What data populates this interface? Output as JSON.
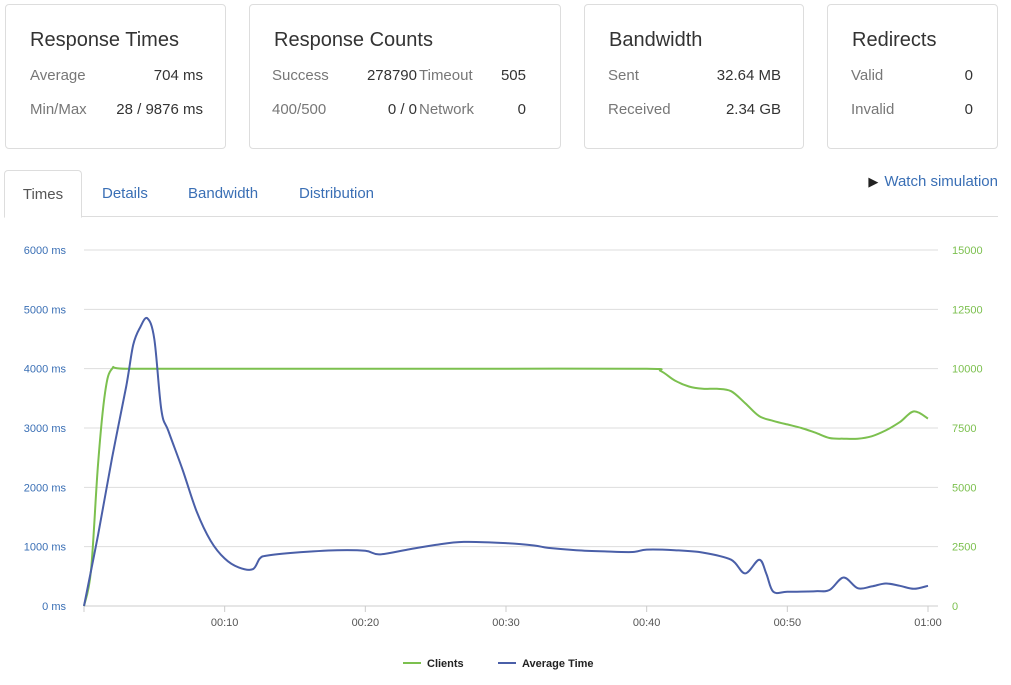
{
  "cards": {
    "response_times": {
      "title": "Response Times",
      "average_label": "Average",
      "average_value": "704 ms",
      "minmax_label": "Min/Max",
      "minmax_value": "28 / 9876 ms"
    },
    "response_counts": {
      "title": "Response Counts",
      "success_label": "Success",
      "success_value": "278790",
      "timeout_label": "Timeout",
      "timeout_value": "505",
      "err_label": "400/500",
      "err_value": "0 / 0",
      "network_label": "Network",
      "network_value": "0"
    },
    "bandwidth": {
      "title": "Bandwidth",
      "sent_label": "Sent",
      "sent_value": "32.64 MB",
      "received_label": "Received",
      "received_value": "2.34 GB"
    },
    "redirects": {
      "title": "Redirects",
      "valid_label": "Valid",
      "valid_value": "0",
      "invalid_label": "Invalid",
      "invalid_value": "0"
    }
  },
  "tabs": [
    "Times",
    "Details",
    "Bandwidth",
    "Distribution"
  ],
  "active_tab": "Times",
  "watch_label": "Watch simulation",
  "chart_data": {
    "type": "line",
    "x_ticks": [
      "00:10",
      "00:20",
      "00:30",
      "00:40",
      "00:50",
      "01:00"
    ],
    "left_ticks": [
      "6000 ms",
      "5000 ms",
      "4000 ms",
      "3000 ms",
      "2000 ms",
      "1000 ms",
      "0 ms"
    ],
    "right_ticks": [
      "15000",
      "12500",
      "10000",
      "7500",
      "5000",
      "2500",
      "0"
    ],
    "left_range": [
      0,
      6000
    ],
    "right_range": [
      0,
      15000
    ],
    "x_range_seconds": [
      0,
      60
    ],
    "grid": true,
    "legend_position": "bottom",
    "series": [
      {
        "name": "Clients",
        "color": "#7cc04f",
        "axis": "right",
        "points": [
          [
            0,
            0
          ],
          [
            0.5,
            1500
          ],
          [
            1,
            6000
          ],
          [
            1.5,
            9000
          ],
          [
            2,
            10000
          ],
          [
            3,
            10000
          ],
          [
            10,
            10000
          ],
          [
            20,
            10000
          ],
          [
            30,
            10000
          ],
          [
            40,
            10000
          ],
          [
            41,
            9900
          ],
          [
            42,
            9500
          ],
          [
            43,
            9250
          ],
          [
            44,
            9150
          ],
          [
            45,
            9150
          ],
          [
            46,
            9050
          ],
          [
            47,
            8550
          ],
          [
            48,
            8000
          ],
          [
            49,
            7800
          ],
          [
            50,
            7650
          ],
          [
            51,
            7500
          ],
          [
            52,
            7300
          ],
          [
            53,
            7080
          ],
          [
            54,
            7050
          ],
          [
            55,
            7050
          ],
          [
            56,
            7150
          ],
          [
            57,
            7400
          ],
          [
            58,
            7750
          ],
          [
            59,
            8200
          ],
          [
            60,
            7900
          ]
        ]
      },
      {
        "name": "Average Time",
        "color": "#4a5fa8",
        "axis": "left",
        "points": [
          [
            0,
            0
          ],
          [
            1,
            1200
          ],
          [
            2,
            2500
          ],
          [
            3,
            3700
          ],
          [
            3.5,
            4400
          ],
          [
            4,
            4700
          ],
          [
            4.5,
            4850
          ],
          [
            5,
            4500
          ],
          [
            5.5,
            3300
          ],
          [
            6,
            2950
          ],
          [
            7,
            2300
          ],
          [
            8,
            1600
          ],
          [
            9,
            1100
          ],
          [
            10,
            800
          ],
          [
            11,
            650
          ],
          [
            12,
            620
          ],
          [
            12.5,
            800
          ],
          [
            13,
            850
          ],
          [
            15,
            900
          ],
          [
            18,
            940
          ],
          [
            20,
            930
          ],
          [
            21,
            870
          ],
          [
            23,
            950
          ],
          [
            25,
            1030
          ],
          [
            27,
            1080
          ],
          [
            30,
            1060
          ],
          [
            32,
            1020
          ],
          [
            33,
            980
          ],
          [
            35,
            940
          ],
          [
            37,
            920
          ],
          [
            39,
            910
          ],
          [
            40,
            950
          ],
          [
            42,
            940
          ],
          [
            44,
            900
          ],
          [
            46,
            780
          ],
          [
            47,
            550
          ],
          [
            48,
            780
          ],
          [
            48.5,
            550
          ],
          [
            49,
            240
          ],
          [
            50,
            240
          ],
          [
            52,
            250
          ],
          [
            53,
            270
          ],
          [
            54,
            480
          ],
          [
            55,
            300
          ],
          [
            56,
            330
          ],
          [
            57,
            380
          ],
          [
            58,
            340
          ],
          [
            59,
            290
          ],
          [
            60,
            340
          ]
        ]
      }
    ]
  }
}
